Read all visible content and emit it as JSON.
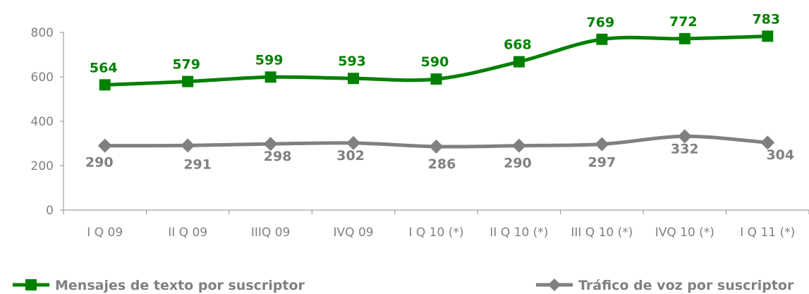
{
  "chart_data": {
    "type": "line",
    "categories": [
      "I Q 09",
      "II Q 09",
      "IIIQ 09",
      "IVQ 09",
      "I Q 10 (*)",
      "II Q 10 (*)",
      "III Q 10 (*)",
      "IVQ 10 (*)",
      "I Q 11 (*)"
    ],
    "series": [
      {
        "name": "Mensajes de texto por suscriptor",
        "color": "#008000",
        "marker": "square",
        "values": [
          564,
          579,
          599,
          593,
          590,
          668,
          769,
          772,
          783
        ]
      },
      {
        "name": "Tráfico de voz por suscriptor",
        "color": "#808080",
        "marker": "diamond",
        "values": [
          290,
          291,
          298,
          302,
          286,
          290,
          297,
          332,
          304
        ]
      }
    ],
    "ylim": [
      0,
      800
    ],
    "yticks": [
      0,
      200,
      400,
      600,
      800
    ],
    "legend_position": "bottom",
    "grid": false,
    "title": "",
    "xlabel": "",
    "ylabel": ""
  }
}
